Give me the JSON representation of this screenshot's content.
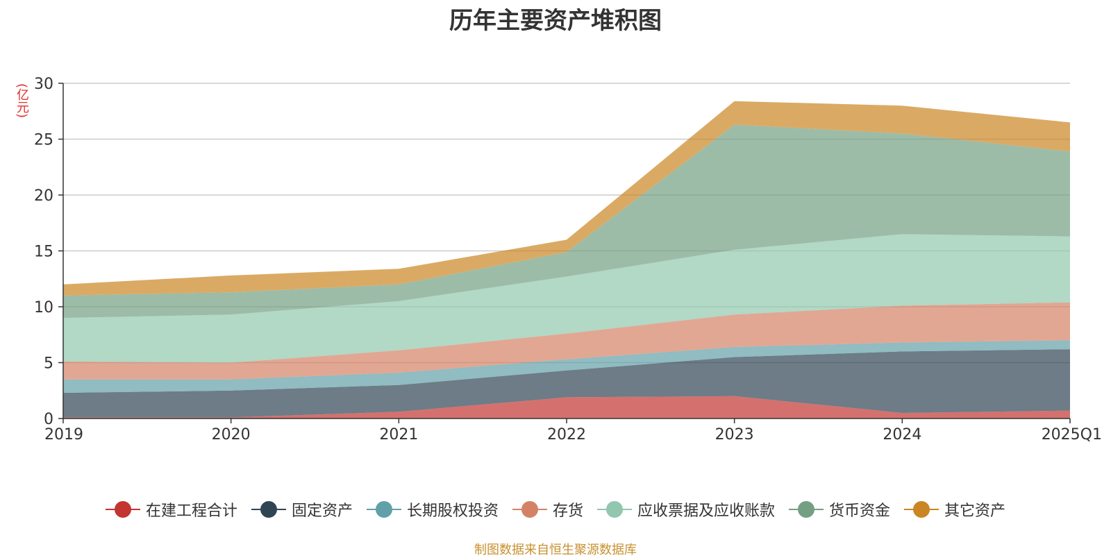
{
  "chart_data": {
    "type": "area",
    "stacked": true,
    "title": "历年主要资产堆积图",
    "ylabel": "(亿元)",
    "xlabel": "",
    "categories": [
      "2019",
      "2020",
      "2021",
      "2022",
      "2023",
      "2024",
      "2025Q1"
    ],
    "yticks": [
      0,
      5,
      10,
      15,
      20,
      25,
      30
    ],
    "ylim": [
      0,
      30
    ],
    "grid": true,
    "legend_position": "bottom",
    "series": [
      {
        "name": "在建工程合计",
        "color": "#c23531",
        "values": [
          0.1,
          0.1,
          0.6,
          1.9,
          2.0,
          0.5,
          0.7
        ]
      },
      {
        "name": "固定资产",
        "color": "#2f4554",
        "values": [
          2.2,
          2.4,
          2.4,
          2.4,
          3.5,
          5.5,
          5.5
        ]
      },
      {
        "name": "长期股权投资",
        "color": "#61a0a8",
        "values": [
          1.2,
          1.0,
          1.1,
          1.0,
          0.9,
          0.8,
          0.8
        ]
      },
      {
        "name": "存货",
        "color": "#d48265",
        "values": [
          1.6,
          1.5,
          2.0,
          2.3,
          2.9,
          3.3,
          3.4
        ]
      },
      {
        "name": "应收票据及应收账款",
        "color": "#91c7ae",
        "values": [
          3.9,
          4.3,
          4.4,
          5.1,
          5.8,
          6.4,
          5.9
        ]
      },
      {
        "name": "货币资金",
        "color": "#749f83",
        "values": [
          2.0,
          2.0,
          1.5,
          2.2,
          11.2,
          9.0,
          7.6
        ]
      },
      {
        "name": "其它资产",
        "color": "#ca8622",
        "values": [
          1.0,
          1.5,
          1.4,
          1.1,
          2.1,
          2.5,
          2.6
        ]
      }
    ]
  },
  "source_note": "制图数据来自恒生聚源数据库"
}
